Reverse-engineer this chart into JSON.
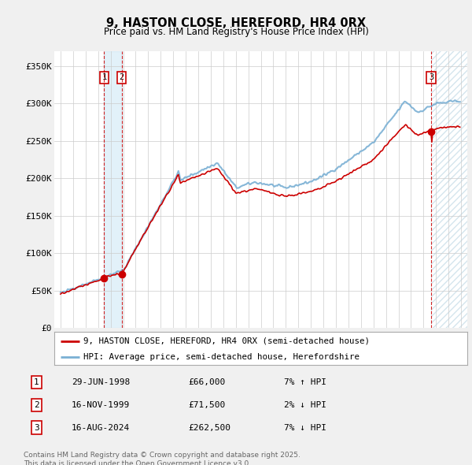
{
  "title": "9, HASTON CLOSE, HEREFORD, HR4 0RX",
  "subtitle": "Price paid vs. HM Land Registry's House Price Index (HPI)",
  "property_label": "9, HASTON CLOSE, HEREFORD, HR4 0RX (semi-detached house)",
  "hpi_label": "HPI: Average price, semi-detached house, Herefordshire",
  "sale_points": [
    {
      "date_x": 1998.49,
      "price": 66000,
      "label": "1"
    },
    {
      "date_x": 1999.88,
      "price": 71500,
      "label": "2"
    },
    {
      "date_x": 2024.62,
      "price": 262500,
      "label": "3"
    }
  ],
  "transactions": [
    {
      "label": "1",
      "date": "29-JUN-1998",
      "price": "£66,000",
      "hpi": "7% ↑ HPI"
    },
    {
      "label": "2",
      "date": "16-NOV-1999",
      "price": "£71,500",
      "hpi": "2% ↓ HPI"
    },
    {
      "label": "3",
      "date": "16-AUG-2024",
      "price": "£262,500",
      "hpi": "7% ↓ HPI"
    }
  ],
  "footnote": "Contains HM Land Registry data © Crown copyright and database right 2025.\nThis data is licensed under the Open Government Licence v3.0.",
  "ylim": [
    0,
    370000
  ],
  "xlim": [
    1994.5,
    2027.5
  ],
  "yticks": [
    0,
    50000,
    100000,
    150000,
    200000,
    250000,
    300000,
    350000
  ],
  "ytick_labels": [
    "£0",
    "£50K",
    "£100K",
    "£150K",
    "£200K",
    "£250K",
    "£300K",
    "£350K"
  ],
  "background_color": "#f0f0f0",
  "plot_bg_color": "#ffffff",
  "red_color": "#cc0000",
  "blue_color": "#7ab0d4",
  "dashed_red": "#cc0000",
  "grid_color": "#cccccc",
  "shade_color": "#d0e8f5"
}
